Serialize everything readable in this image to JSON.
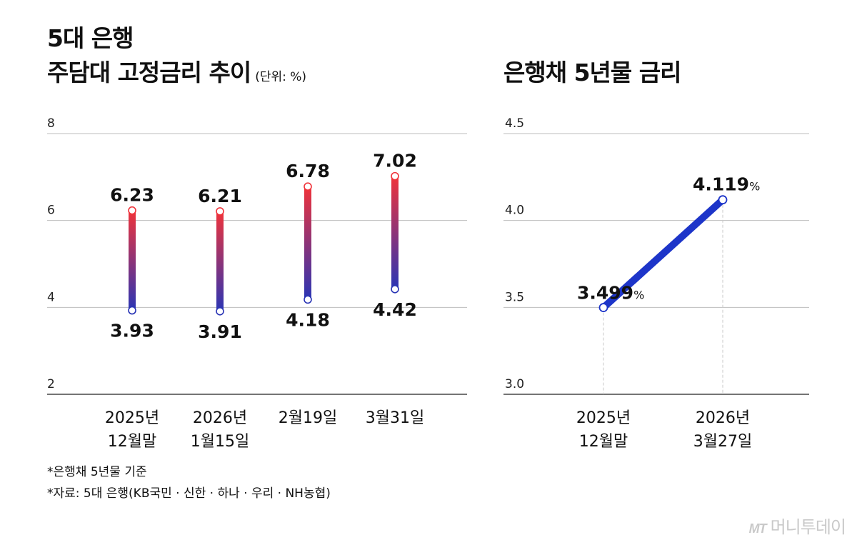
{
  "title_left": {
    "line1": "5대 은행",
    "line2": "주담대 고정금리 추이",
    "unit": "(단위: %)"
  },
  "title_right": "은행채 5년물 금리",
  "chart_data": [
    {
      "type": "bar",
      "chart_style": "range bar (min–max)",
      "categories": [
        [
          "2025년",
          "12월말"
        ],
        [
          "2026년",
          "1월15일"
        ],
        [
          "2월19일"
        ],
        [
          "3월31일"
        ]
      ],
      "series": [
        {
          "values_low": [
            3.93,
            3.91,
            4.18,
            4.42
          ],
          "values_high": [
            6.23,
            6.21,
            6.78,
            7.02
          ]
        }
      ],
      "labels_high": [
        "6.23",
        "6.21",
        "6.78",
        "7.02"
      ],
      "labels_low": [
        "3.93",
        "3.91",
        "4.18",
        "4.42"
      ],
      "yticks": [
        "8",
        "6",
        "4",
        "2"
      ],
      "ylim": [
        2,
        8
      ],
      "grid": true,
      "colors": {
        "high": "#f0333a",
        "low": "#2a35b5"
      }
    },
    {
      "type": "line",
      "categories": [
        [
          "2025년",
          "12월말"
        ],
        [
          "2026년",
          "3월27일"
        ]
      ],
      "values": [
        3.499,
        4.119
      ],
      "labels": [
        "3.499",
        "4.119"
      ],
      "label_unit": "%",
      "yticks": [
        "4.5",
        "4.0",
        "3.5",
        "3.0"
      ],
      "ylim": [
        3.0,
        4.5
      ],
      "grid": true,
      "colors": {
        "line": "#1d35c9"
      }
    }
  ],
  "notes": [
    "*은행채 5년물 기준",
    "*자료: 5대 은행(KB국민 · 신한 · 하나 · 우리 · NH농협)"
  ],
  "brand": {
    "mark": "MT",
    "name": "머니투데이"
  }
}
